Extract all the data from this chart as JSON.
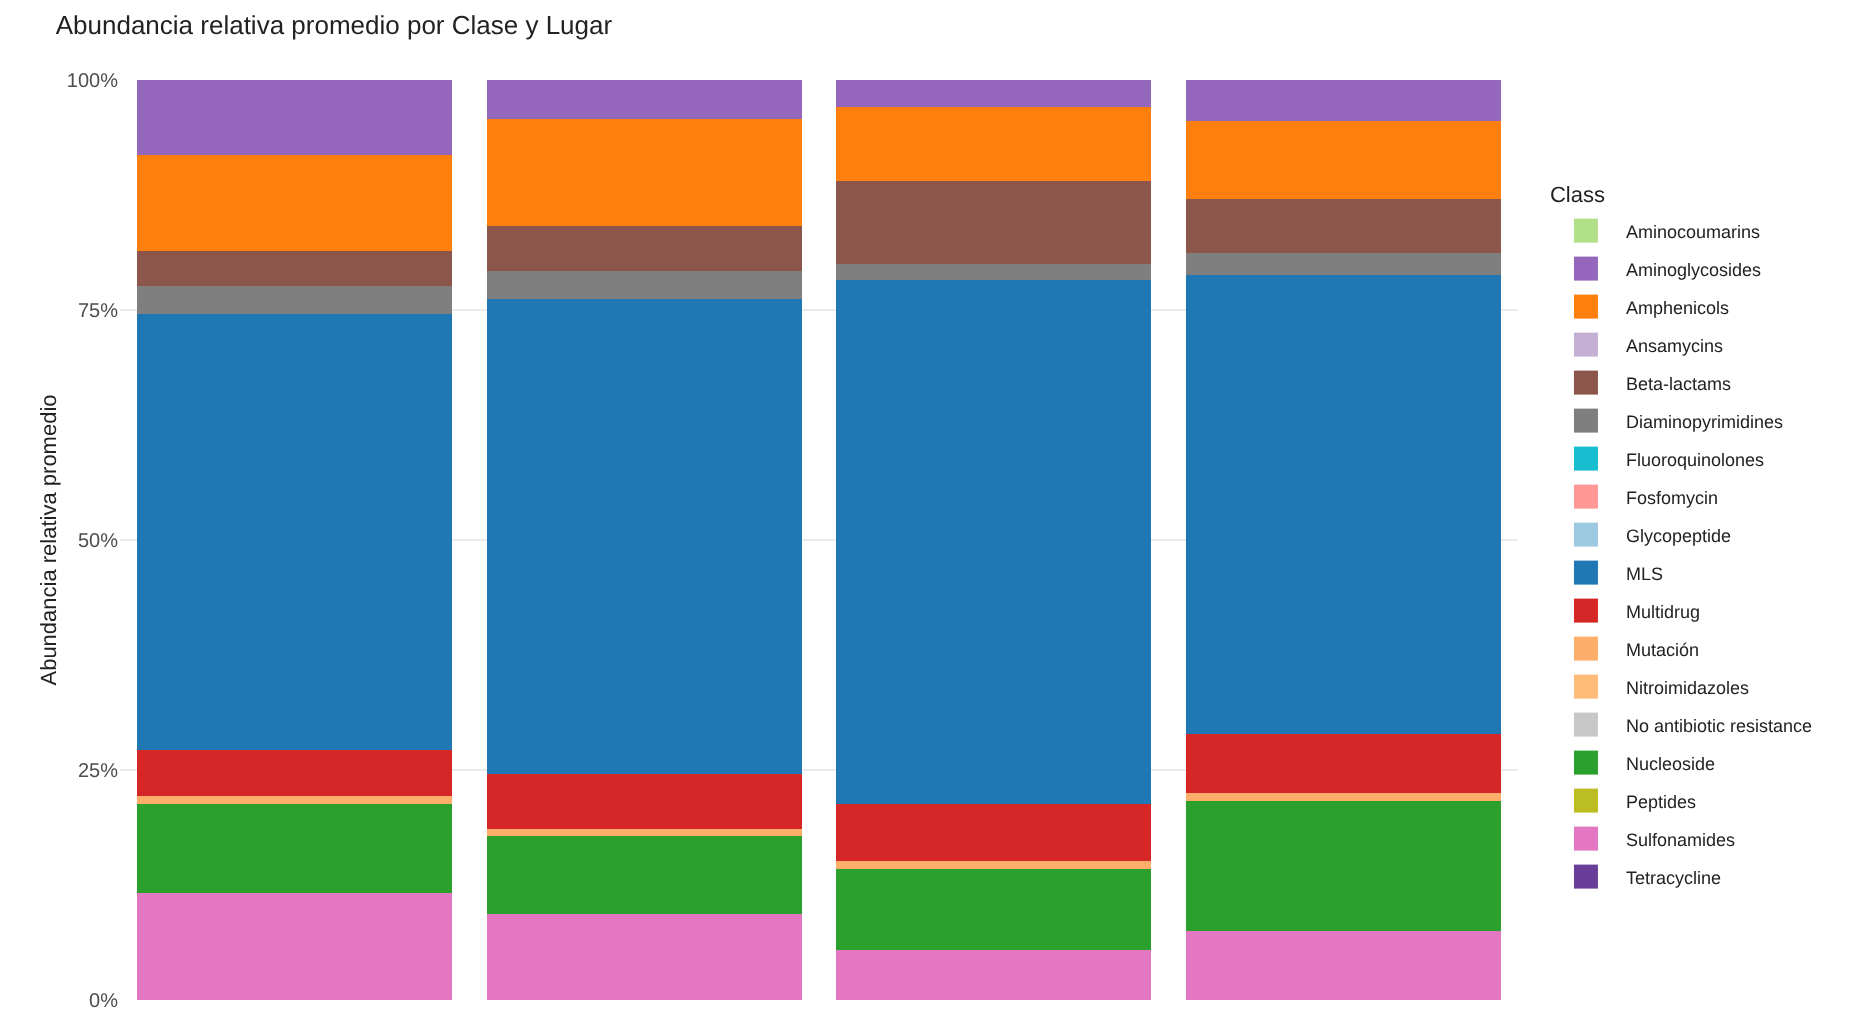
{
  "chart_data": {
    "type": "bar",
    "title": "Abundancia relativa promedio por Clase y Lugar",
    "ylabel": "Abundancia relativa promedio",
    "legend_title": "Class",
    "categories": [
      null,
      null,
      null,
      null
    ],
    "stacked": true,
    "ylim": [
      0,
      100
    ],
    "yticks": [
      {
        "value": 0,
        "label": "0%"
      },
      {
        "value": 25,
        "label": "25%"
      },
      {
        "value": 50,
        "label": "50%"
      },
      {
        "value": 75,
        "label": "75%"
      },
      {
        "value": 100,
        "label": "100%"
      }
    ],
    "grid": true,
    "legend": "right",
    "tick_labels": "y",
    "series": [
      {
        "name": "Tetracycline",
        "color": "#6a3d9a",
        "values": [
          0,
          0,
          0,
          0
        ]
      },
      {
        "name": "Sulfonamides",
        "color": "#e377c2",
        "values": [
          11.6,
          9.4,
          5.4,
          7.5
        ]
      },
      {
        "name": "Peptides",
        "color": "#bcbd22",
        "values": [
          0,
          0,
          0,
          0
        ]
      },
      {
        "name": "Nucleoside",
        "color": "#2ca02c",
        "values": [
          9.7,
          8.4,
          8.8,
          14.1
        ]
      },
      {
        "name": "No antibiotic resistance",
        "color": "#c7c7c7",
        "values": [
          0,
          0,
          0,
          0
        ]
      },
      {
        "name": "Nitroimidazoles",
        "color": "#ffbb78",
        "values": [
          0,
          0,
          0,
          0
        ]
      },
      {
        "name": "Mutación",
        "color": "#fdae6b",
        "values": [
          0.9,
          0.8,
          0.9,
          0.9
        ]
      },
      {
        "name": "Multidrug",
        "color": "#d62728",
        "values": [
          5.0,
          6.0,
          6.2,
          6.4
        ]
      },
      {
        "name": "MLS",
        "color": "#1f77b4",
        "values": [
          47.4,
          51.6,
          57.0,
          49.9
        ]
      },
      {
        "name": "Glycopeptide",
        "color": "#9ecae1",
        "values": [
          0,
          0,
          0,
          0
        ]
      },
      {
        "name": "Fosfomycin",
        "color": "#ff9896",
        "values": [
          0,
          0,
          0,
          0
        ]
      },
      {
        "name": "Fluoroquinolones",
        "color": "#17becf",
        "values": [
          0,
          0,
          0,
          0
        ]
      },
      {
        "name": "Diaminopyrimidines",
        "color": "#7f7f7f",
        "values": [
          3.0,
          3.0,
          1.7,
          2.4
        ]
      },
      {
        "name": "Beta-lactams",
        "color": "#8c564b",
        "values": [
          3.8,
          4.9,
          9.0,
          5.9
        ]
      },
      {
        "name": "Ansamycins",
        "color": "#c5b0d5",
        "values": [
          0,
          0,
          0,
          0
        ]
      },
      {
        "name": "Amphenicols",
        "color": "#ff7f0e",
        "values": [
          10.5,
          11.7,
          8.1,
          8.4
        ]
      },
      {
        "name": "Aminoglycosides",
        "color": "#9467bd",
        "values": [
          8.1,
          4.2,
          2.9,
          4.5
        ]
      },
      {
        "name": "Aminocoumarins",
        "color": "#b2df8a",
        "values": [
          0,
          0,
          0,
          0
        ]
      }
    ]
  }
}
